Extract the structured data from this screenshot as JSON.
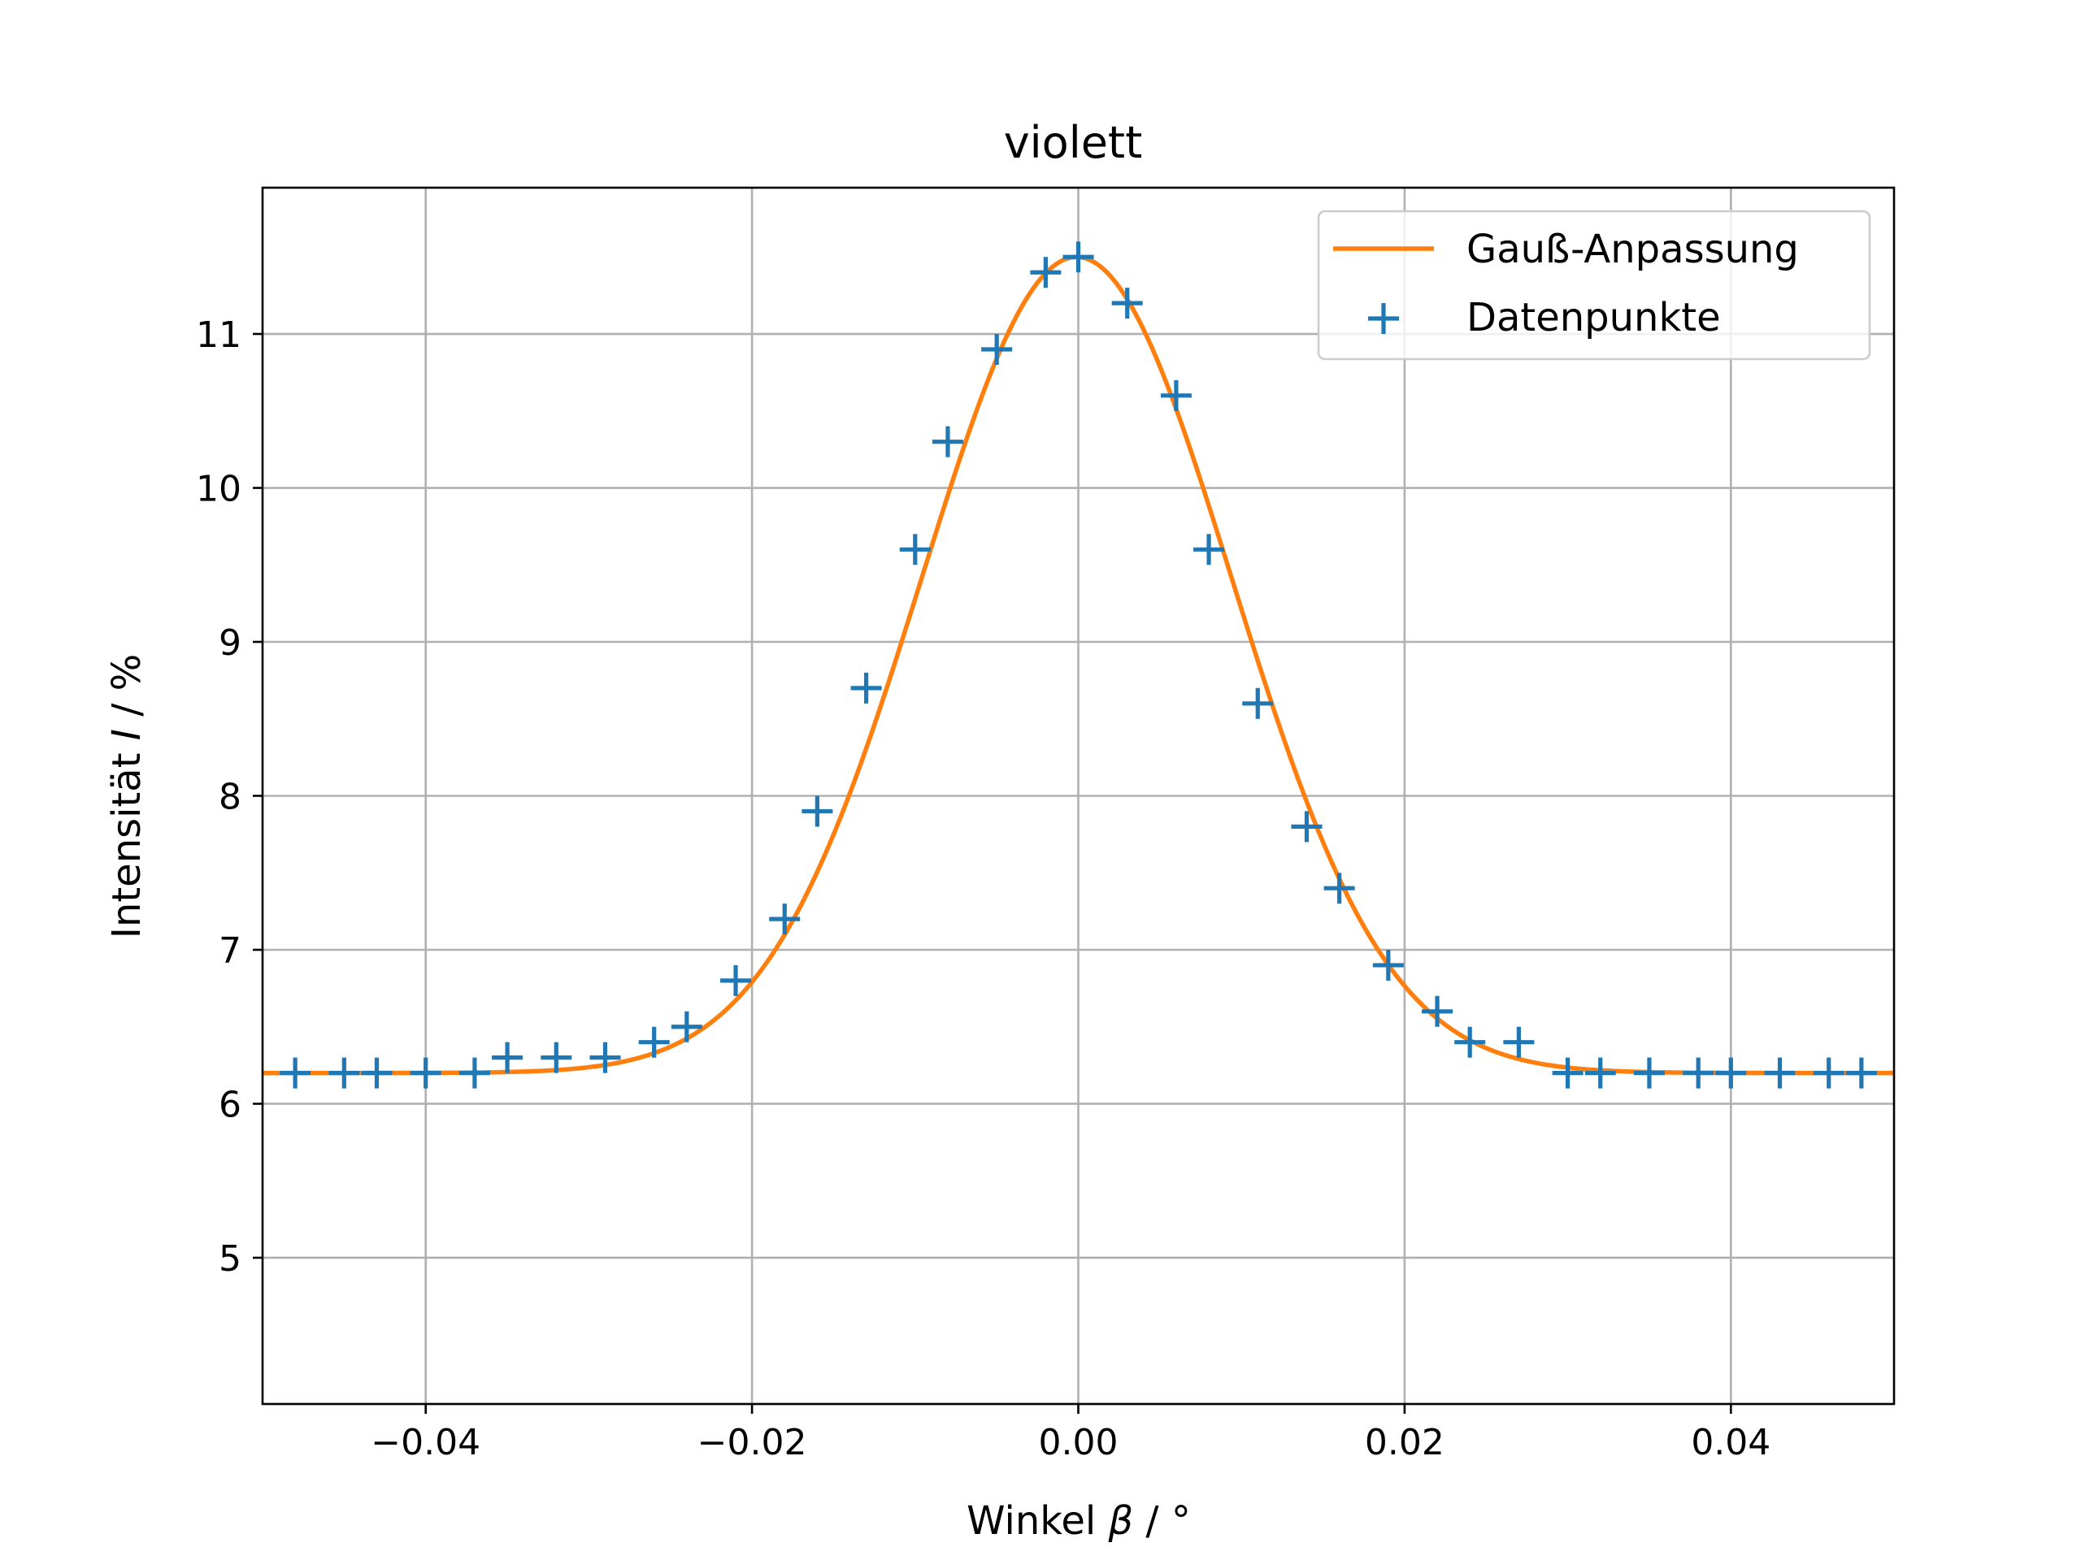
{
  "chart_data": {
    "type": "scatter",
    "title": "violett",
    "xlabel_prefix": "Winkel ",
    "xlabel_symbol": "β",
    "xlabel_suffix": " / °",
    "ylabel_prefix": "Intensität ",
    "ylabel_symbol": "I",
    "ylabel_suffix": " / %",
    "xlim": [
      -0.05,
      0.05
    ],
    "ylim": [
      4.05,
      11.95
    ],
    "grid": true,
    "legend_position": "top-right",
    "x_ticks": [
      -0.04,
      -0.02,
      0.0,
      0.02,
      0.04
    ],
    "x_tick_labels": [
      "−0.04",
      "−0.02",
      "0.00",
      "0.02",
      "0.04"
    ],
    "y_ticks": [
      5,
      6,
      7,
      8,
      9,
      10,
      11
    ],
    "y_tick_labels": [
      "5",
      "6",
      "7",
      "8",
      "9",
      "10",
      "11"
    ],
    "series": [
      {
        "name": "Gauß-Anpassung",
        "kind": "line",
        "color": "#ff7f0e",
        "model": "gaussian",
        "params": {
          "amplitude": 5.3,
          "center": -0.0001,
          "sigma": 0.0095,
          "offset": 6.2
        }
      },
      {
        "name": "Datenpunkte",
        "kind": "scatter",
        "marker": "plus",
        "color": "#1f77b4",
        "x": [
          -0.048,
          -0.045,
          -0.043,
          -0.04,
          -0.037,
          -0.035,
          -0.032,
          -0.029,
          -0.026,
          -0.024,
          -0.021,
          -0.018,
          -0.016,
          -0.013,
          -0.01,
          -0.008,
          -0.005,
          -0.002,
          0.0,
          0.003,
          0.006,
          0.008,
          0.011,
          0.014,
          0.016,
          0.019,
          0.022,
          0.024,
          0.027,
          0.03,
          0.032,
          0.035,
          0.038,
          0.04,
          0.043,
          0.046,
          0.048
        ],
        "y": [
          6.2,
          6.2,
          6.2,
          6.2,
          6.2,
          6.3,
          6.3,
          6.3,
          6.4,
          6.5,
          6.8,
          7.2,
          7.9,
          8.7,
          9.6,
          10.3,
          10.9,
          11.4,
          11.5,
          11.2,
          10.6,
          9.6,
          8.6,
          7.8,
          7.4,
          6.9,
          6.6,
          6.4,
          6.4,
          6.2,
          6.2,
          6.2,
          6.2,
          6.2,
          6.2,
          6.2,
          6.2
        ]
      }
    ]
  }
}
